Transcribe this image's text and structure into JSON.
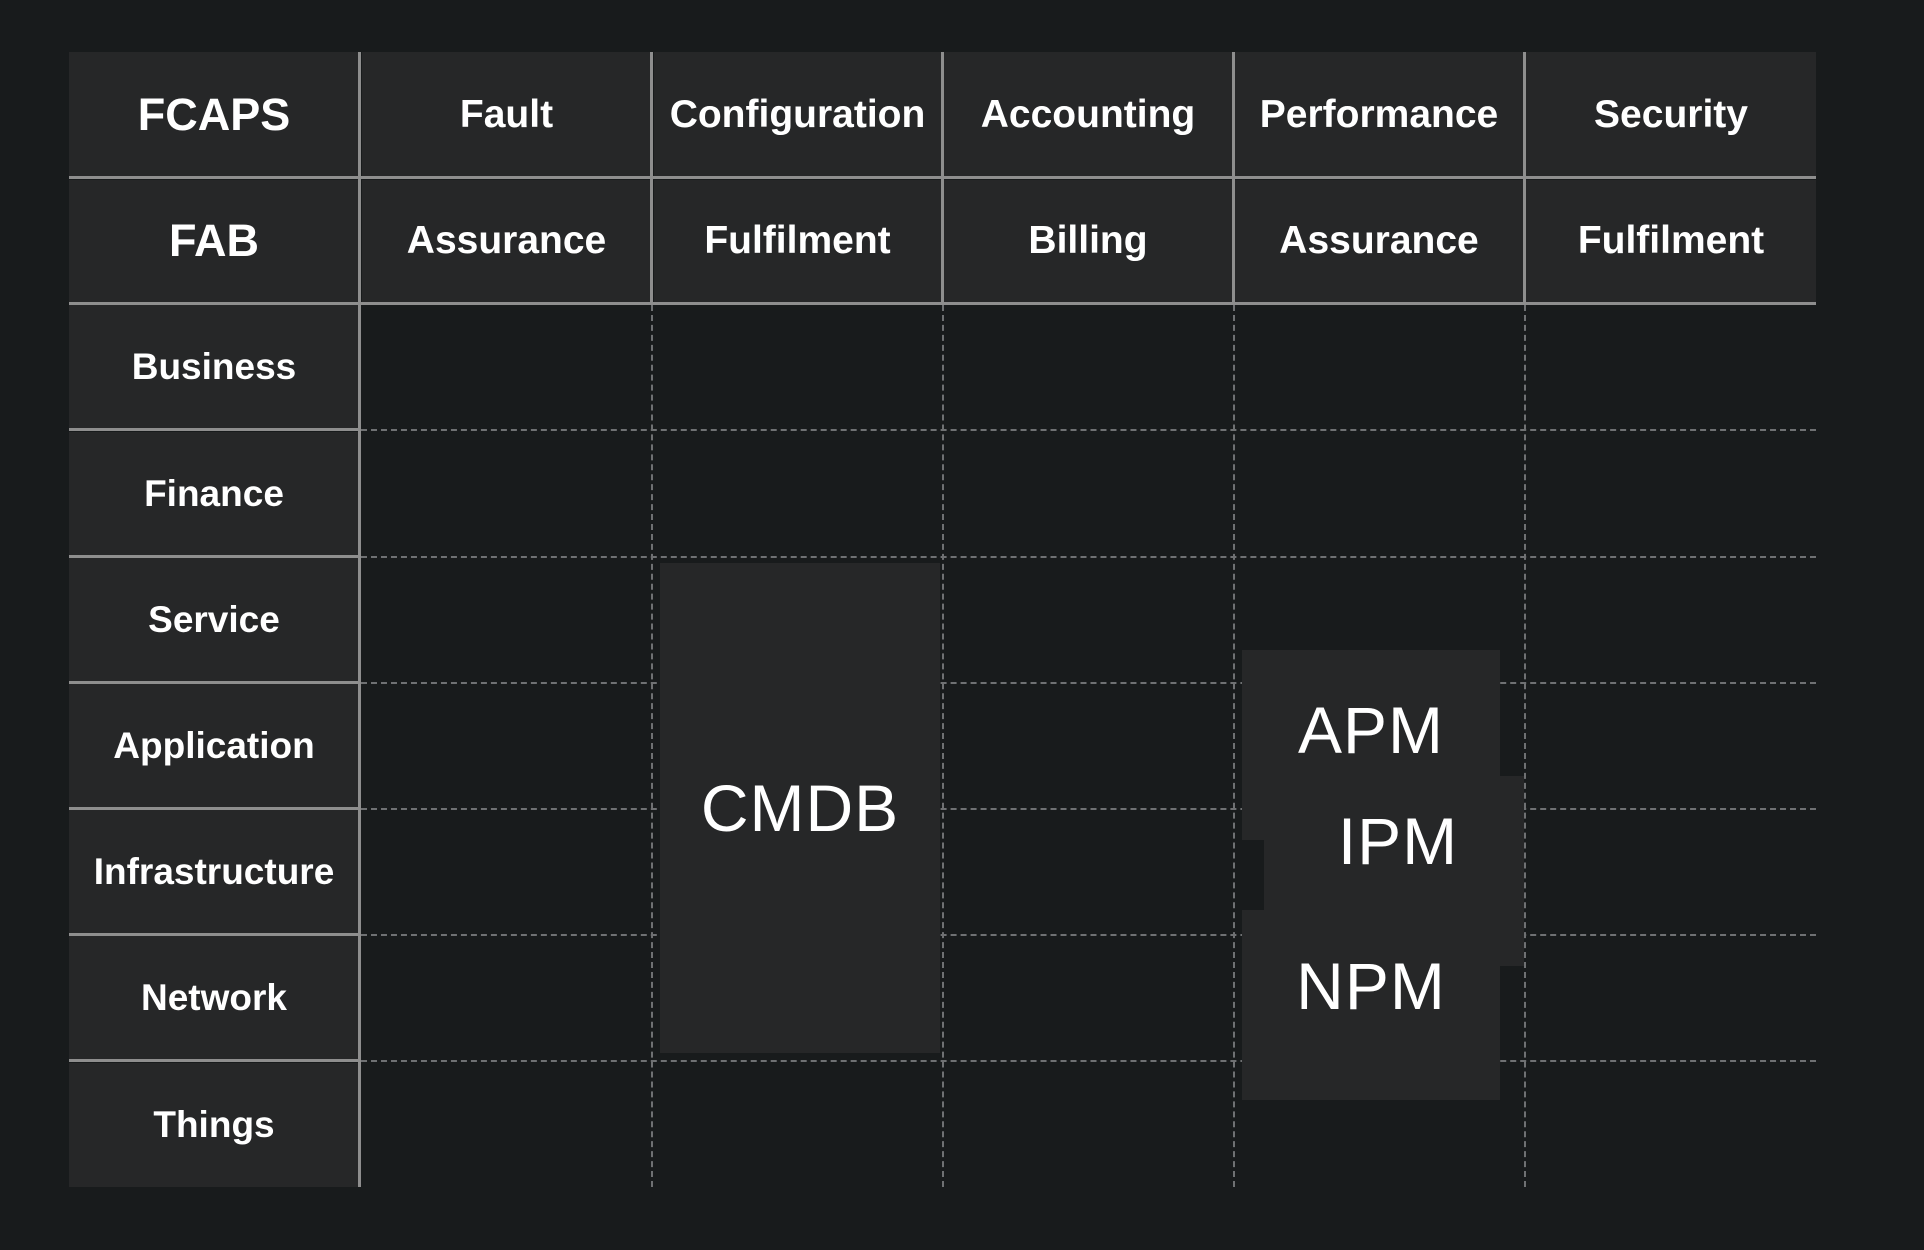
{
  "matrix": {
    "corner_fcaps": "FCAPS",
    "corner_fab": "FAB",
    "fcaps": [
      "Fault",
      "Configuration",
      "Accounting",
      "Performance",
      "Security"
    ],
    "fab": [
      "Assurance",
      "Fulfilment",
      "Billing",
      "Assurance",
      "Fulfilment"
    ],
    "layers": [
      "Business",
      "Finance",
      "Service",
      "Application",
      "Infrastructure",
      "Network",
      "Things"
    ]
  },
  "tools": {
    "cmdb": "CMDB",
    "apm": "APM",
    "ipm": "IPM",
    "npm": "NPM"
  }
}
